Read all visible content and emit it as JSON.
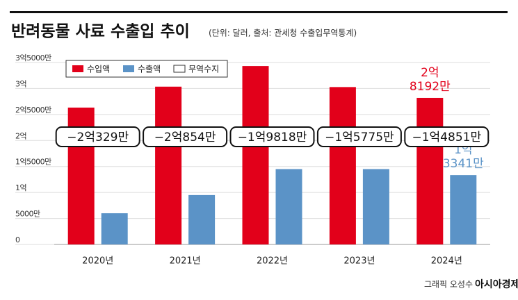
{
  "chart_data": {
    "type": "bar",
    "title": "반려동물 사료 수출입 추이",
    "subtitle": "(단위: 달러, 출처: 관세청 수출입무역통계)",
    "categories": [
      "2020년",
      "2021년",
      "2022년",
      "2023년",
      "2024년"
    ],
    "series": [
      {
        "name": "수입액",
        "color": "#e2001a",
        "values": [
          263290000,
          303540000,
          343180000,
          302750000,
          281920000
        ],
        "value_labels": [
          null,
          null,
          null,
          null,
          [
            "2억",
            "8192만"
          ]
        ]
      },
      {
        "name": "수출액",
        "color": "#5b93c7",
        "values": [
          60000000,
          95000000,
          145000000,
          145000000,
          133410000
        ],
        "value_labels": [
          null,
          null,
          null,
          null,
          [
            "1억",
            "3341만"
          ]
        ]
      },
      {
        "name": "무역수지",
        "color": "#ffffff",
        "values": [
          -203290000,
          -208540000,
          -198180000,
          -157750000,
          -148510000
        ],
        "value_labels": [
          "−2억329만",
          "−2억854만",
          "−1억9818만",
          "−1억5775만",
          "−1억4851만"
        ]
      }
    ],
    "ylim": [
      0,
      350000000
    ],
    "yticks": [
      0,
      {
        "value": 50000000,
        "label": "5000만"
      },
      {
        "value": 100000000,
        "label": "1억"
      },
      {
        "value": 150000000,
        "label": "1억5000만"
      },
      {
        "value": 200000000,
        "label": "2억"
      },
      {
        "value": 250000000,
        "label": "2억5000만"
      },
      {
        "value": 300000000,
        "label": "3억"
      },
      {
        "value": 350000000,
        "label": "3억5000만"
      }
    ],
    "grid": true,
    "credit": "그래픽 오성수",
    "logo": "아시아경제"
  }
}
